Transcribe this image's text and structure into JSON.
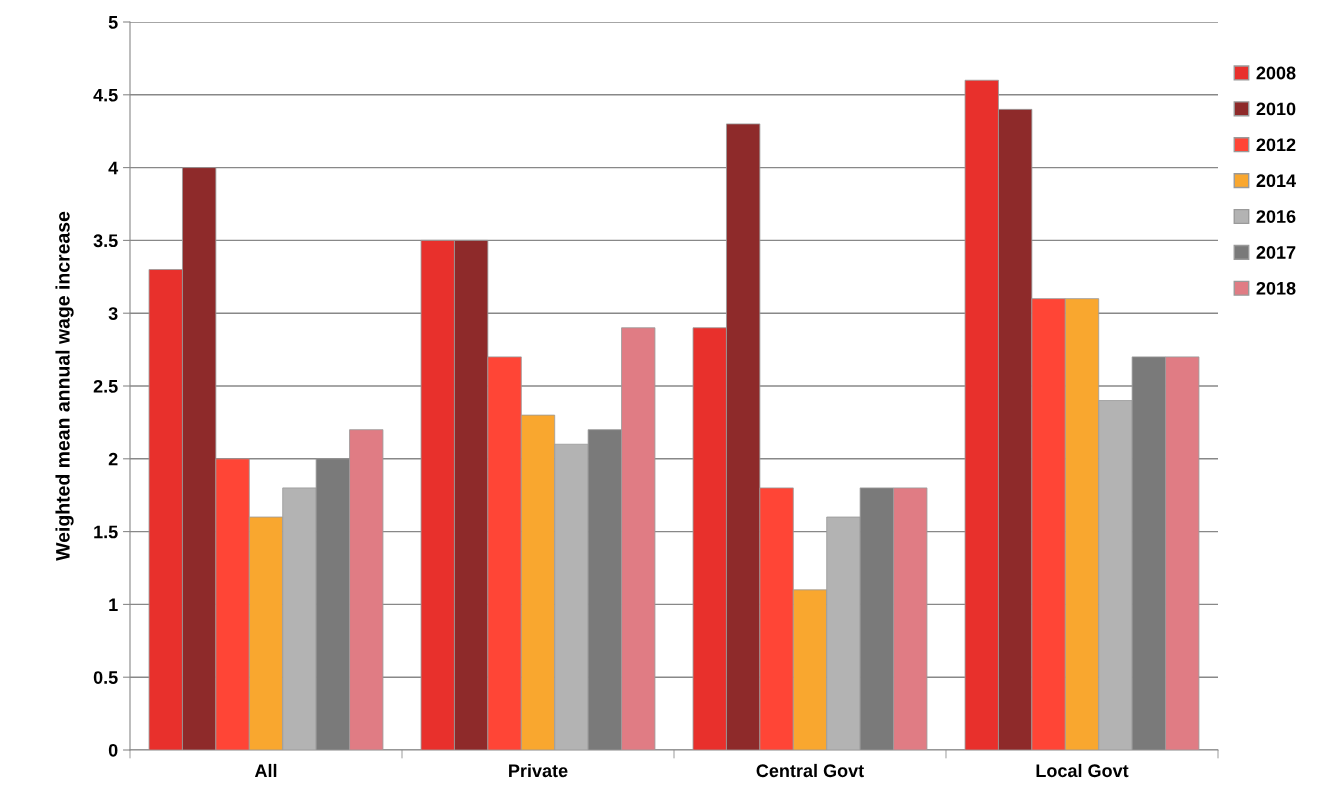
{
  "chart_data": {
    "type": "bar",
    "ylabel": "Weighted mean annual wage increase",
    "categories": [
      "All",
      "Private",
      "Central Govt",
      "Local Govt"
    ],
    "series": [
      {
        "name": "2008",
        "color": "#e8302c",
        "values": [
          3.3,
          3.5,
          2.9,
          4.6
        ]
      },
      {
        "name": "2010",
        "color": "#8e2a2a",
        "values": [
          4.0,
          3.5,
          4.3,
          4.4
        ]
      },
      {
        "name": "2012",
        "color": "#ff4536",
        "values": [
          2.0,
          2.7,
          1.8,
          3.1
        ]
      },
      {
        "name": "2014",
        "color": "#f9a72f",
        "values": [
          1.6,
          2.3,
          1.1,
          3.1
        ]
      },
      {
        "name": "2016",
        "color": "#b3b3b3",
        "values": [
          1.8,
          2.1,
          1.6,
          2.4
        ]
      },
      {
        "name": "2017",
        "color": "#7a7a7a",
        "values": [
          2.0,
          2.2,
          1.8,
          2.7
        ]
      },
      {
        "name": "2018",
        "color": "#e07c84",
        "values": [
          2.2,
          2.9,
          1.8,
          2.7
        ]
      }
    ],
    "ylim": [
      0,
      5
    ],
    "yticks": [
      0,
      0.5,
      1,
      1.5,
      2,
      2.5,
      3,
      3.5,
      4,
      4.5,
      5
    ],
    "grid": "y",
    "legend": "right"
  }
}
